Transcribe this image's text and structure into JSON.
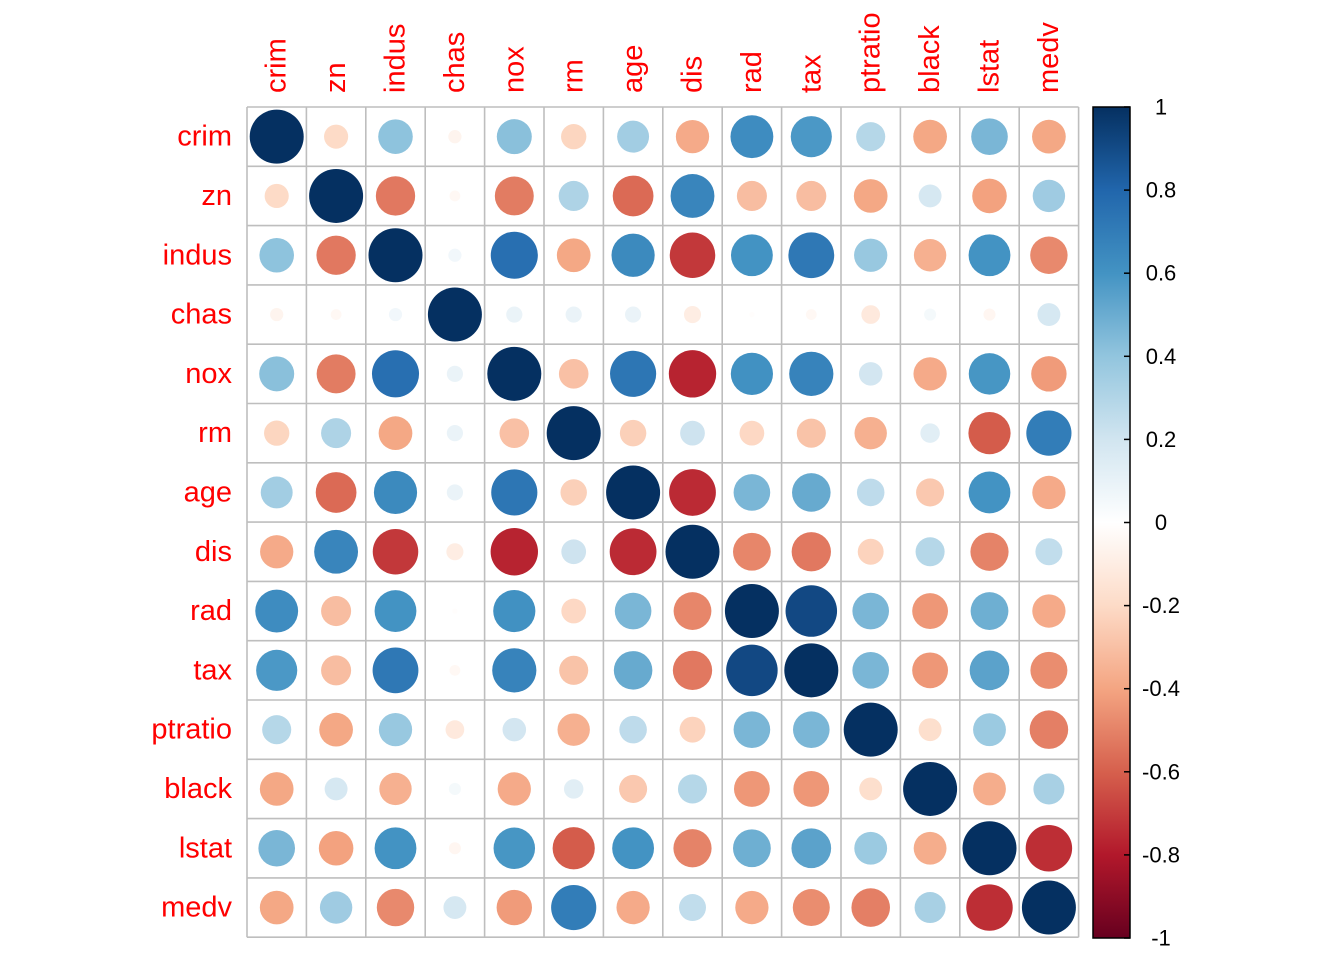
{
  "chart_data": {
    "type": "heatmap",
    "style": "circle",
    "variables": [
      "crim",
      "zn",
      "indus",
      "chas",
      "nox",
      "rm",
      "age",
      "dis",
      "rad",
      "tax",
      "ptratio",
      "black",
      "lstat",
      "medv"
    ],
    "matrix": [
      [
        1.0,
        -0.2,
        0.41,
        -0.06,
        0.42,
        -0.22,
        0.35,
        -0.38,
        0.63,
        0.58,
        0.29,
        -0.39,
        0.46,
        -0.39
      ],
      [
        -0.2,
        1.0,
        -0.53,
        -0.04,
        -0.52,
        0.31,
        -0.57,
        0.66,
        -0.31,
        -0.31,
        -0.39,
        0.18,
        -0.41,
        0.36
      ],
      [
        0.41,
        -0.53,
        1.0,
        0.06,
        0.76,
        -0.39,
        0.64,
        -0.71,
        0.6,
        0.72,
        0.38,
        -0.36,
        0.6,
        -0.48
      ],
      [
        -0.06,
        -0.04,
        0.06,
        1.0,
        0.09,
        0.09,
        0.09,
        -0.1,
        -0.01,
        -0.04,
        -0.12,
        0.05,
        -0.05,
        0.18
      ],
      [
        0.42,
        -0.52,
        0.76,
        0.09,
        1.0,
        -0.3,
        0.73,
        -0.77,
        0.61,
        0.67,
        0.19,
        -0.38,
        0.59,
        -0.43
      ],
      [
        -0.22,
        0.31,
        -0.39,
        0.09,
        -0.3,
        1.0,
        -0.24,
        0.21,
        -0.21,
        -0.29,
        -0.36,
        0.13,
        -0.61,
        0.7
      ],
      [
        0.35,
        -0.57,
        0.64,
        0.09,
        0.73,
        -0.24,
        1.0,
        -0.75,
        0.46,
        0.51,
        0.26,
        -0.27,
        0.6,
        -0.38
      ],
      [
        -0.38,
        0.66,
        -0.71,
        -0.1,
        -0.77,
        0.21,
        -0.75,
        1.0,
        -0.49,
        -0.53,
        -0.23,
        0.29,
        -0.5,
        0.25
      ],
      [
        0.63,
        -0.31,
        0.6,
        -0.01,
        0.61,
        -0.21,
        0.46,
        -0.49,
        1.0,
        0.91,
        0.46,
        -0.44,
        0.49,
        -0.38
      ],
      [
        0.58,
        -0.31,
        0.72,
        -0.04,
        0.67,
        -0.29,
        0.51,
        -0.53,
        0.91,
        1.0,
        0.46,
        -0.44,
        0.54,
        -0.47
      ],
      [
        0.29,
        -0.39,
        0.38,
        -0.12,
        0.19,
        -0.36,
        0.26,
        -0.23,
        0.46,
        0.46,
        1.0,
        -0.18,
        0.37,
        -0.51
      ],
      [
        -0.39,
        0.18,
        -0.36,
        0.05,
        -0.38,
        0.13,
        -0.27,
        0.29,
        -0.44,
        -0.44,
        -0.18,
        1.0,
        -0.37,
        0.33
      ],
      [
        0.46,
        -0.41,
        0.6,
        -0.05,
        0.59,
        -0.61,
        0.6,
        -0.5,
        0.49,
        0.54,
        0.37,
        -0.37,
        1.0,
        -0.74
      ],
      [
        -0.39,
        0.36,
        -0.48,
        0.18,
        -0.43,
        0.7,
        -0.38,
        0.25,
        -0.38,
        -0.47,
        -0.51,
        0.33,
        -0.74,
        1.0
      ]
    ],
    "colorbar": {
      "range": [
        -1,
        1
      ],
      "ticks": [
        "1",
        "0.8",
        "0.6",
        "0.4",
        "0.2",
        "0",
        "-0.2",
        "-0.4",
        "-0.6",
        "-0.8",
        "-1"
      ],
      "palette": [
        "#67001F",
        "#B2182B",
        "#D6604D",
        "#F4A582",
        "#FDDBC7",
        "#FFFFFF",
        "#D1E5F0",
        "#92C5DE",
        "#4393C3",
        "#2166AC",
        "#053061"
      ]
    },
    "label_color": "#FF0000",
    "grid_color": "#BEBEBE"
  }
}
